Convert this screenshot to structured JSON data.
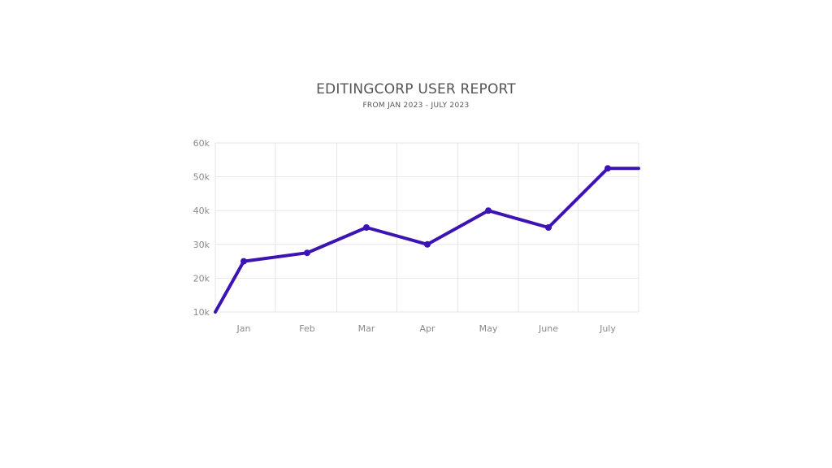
{
  "chart_data": {
    "type": "line",
    "title": "EDITINGCORP USER REPORT",
    "subtitle": "FROM JAN 2023 - JULY 2023",
    "xlabel": "",
    "ylabel": "",
    "categories": [
      "Jan",
      "Feb",
      "Mar",
      "Apr",
      "May",
      "June",
      "July"
    ],
    "y_ticks": [
      "60k",
      "50k",
      "40k",
      "30k",
      "20k",
      "10k"
    ],
    "y_tick_values": [
      60000,
      50000,
      40000,
      30000,
      20000,
      10000
    ],
    "ylim": [
      10000,
      60000
    ],
    "grid": true,
    "legend": "none",
    "series": [
      {
        "color": "#3d14b4",
        "points": [
          {
            "x": "",
            "y": 10000,
            "marker": false
          },
          {
            "x": "Jan",
            "y": 25000,
            "marker": true
          },
          {
            "x": "Feb",
            "y": 27500,
            "marker": true
          },
          {
            "x": "Mar",
            "y": 35000,
            "marker": true
          },
          {
            "x": "Apr",
            "y": 30000,
            "marker": true
          },
          {
            "x": "May",
            "y": 40000,
            "marker": true
          },
          {
            "x": "June",
            "y": 35000,
            "marker": true
          },
          {
            "x": "July",
            "y": 52500,
            "marker": true
          },
          {
            "x": "",
            "y": 52500,
            "marker": false
          }
        ]
      }
    ],
    "colors": {
      "line": "#3d14b4",
      "grid": "#e6e6e6",
      "tick_text": "#8a8a8a",
      "title_text": "#555555"
    }
  }
}
